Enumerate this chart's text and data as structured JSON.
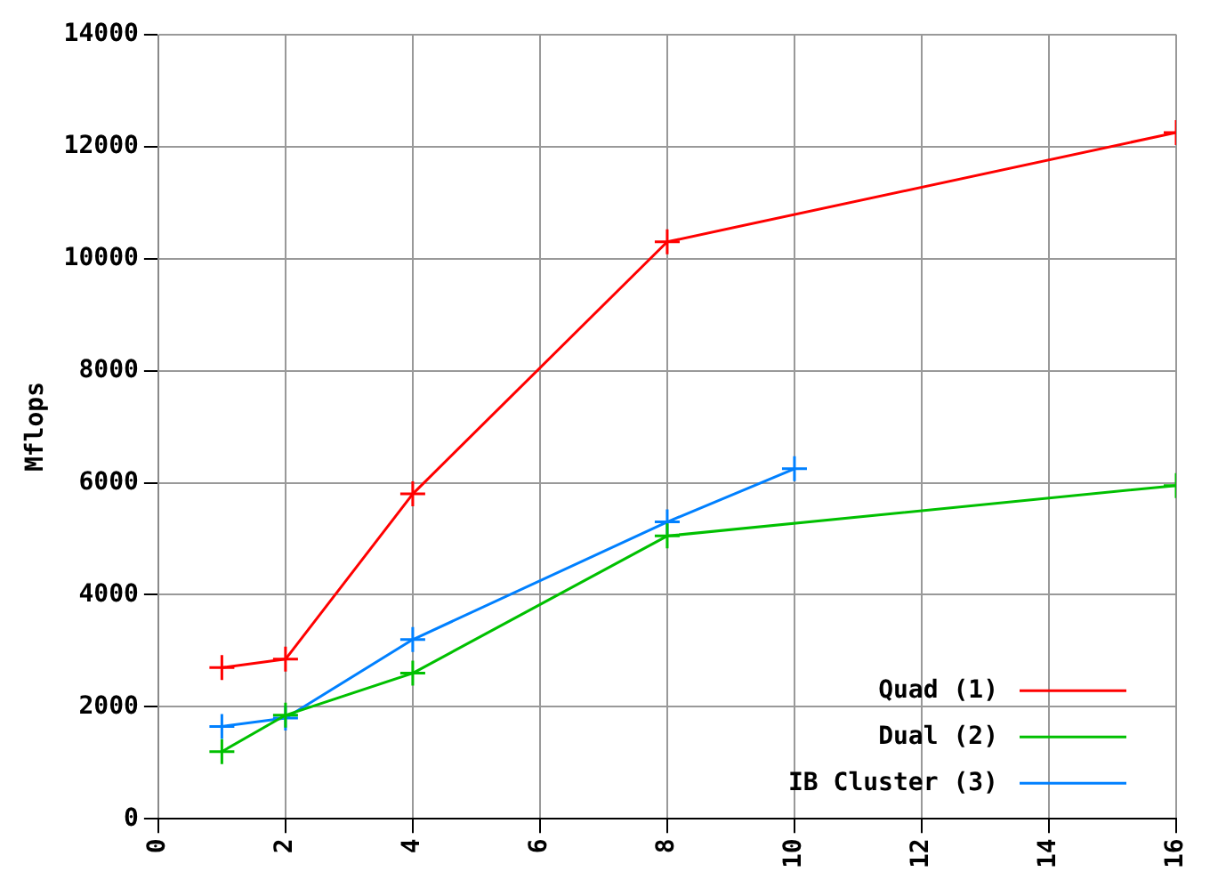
{
  "chart_data": {
    "type": "line",
    "ylabel": "Mflops",
    "xlim": [
      0,
      16
    ],
    "xticks": [
      0,
      2,
      4,
      6,
      8,
      10,
      12,
      14,
      16
    ],
    "ylim": [
      0,
      14000
    ],
    "yticks": [
      0,
      2000,
      4000,
      6000,
      8000,
      10000,
      12000,
      14000
    ],
    "grid": true,
    "legend": "bottom right",
    "line_style": "solid",
    "series": [
      {
        "name": "Quad (1)",
        "color": "#ff0000",
        "marker": "cross",
        "x": [
          1,
          2,
          4,
          8,
          16
        ],
        "values": [
          2700,
          2850,
          5800,
          10300,
          12250
        ]
      },
      {
        "name": "Dual (2)",
        "color": "#00c000",
        "marker": "cross",
        "x": [
          1,
          2,
          4,
          8,
          16
        ],
        "values": [
          1200,
          1850,
          2600,
          5050,
          5950
        ]
      },
      {
        "name": "IB Cluster (3)",
        "color": "#0080ff",
        "marker": "cross",
        "x": [
          1,
          2,
          4,
          8,
          10
        ],
        "values": [
          1650,
          1800,
          3200,
          5300,
          6250
        ]
      }
    ]
  }
}
